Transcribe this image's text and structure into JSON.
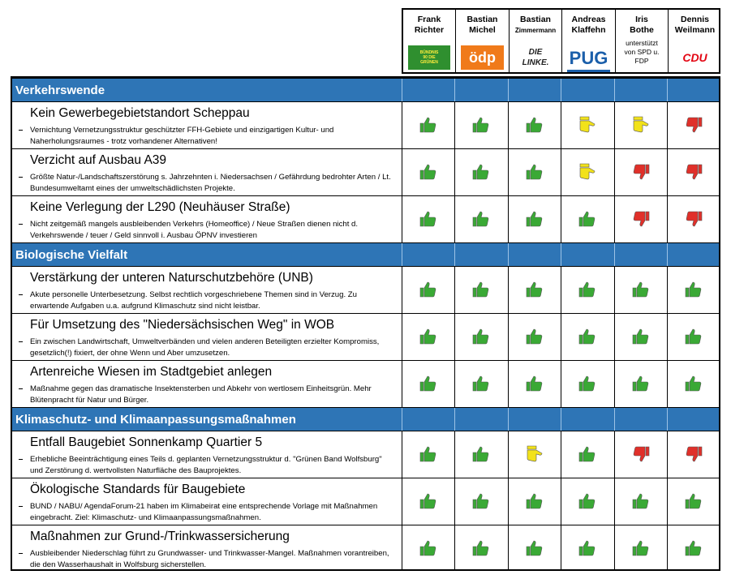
{
  "candidates": [
    {
      "first": "Frank",
      "last": "Richter",
      "logo": "BÜNDNIS 90 DIE GRÜNEN"
    },
    {
      "first": "Bastian",
      "last": "Michel",
      "logo": "ödp"
    },
    {
      "first": "Bastian",
      "last": "Zimmermann",
      "logo": "DIE LINKE."
    },
    {
      "first": "Andreas",
      "last": "Klaffehn",
      "logo": "PUG"
    },
    {
      "first": "Iris",
      "last": "Bothe",
      "logo": "unterstützt von SPD u. FDP"
    },
    {
      "first": "Dennis",
      "last": "Weilmann",
      "logo": "CDU"
    }
  ],
  "sections": [
    {
      "title": "Verkehrswende",
      "items": [
        {
          "title": "Kein Gewerbegebietstandort Scheppau",
          "description": "Vernichtung Vernetzungsstruktur geschützter FFH-Gebiete und einzigartigen Kultur- und Naherholungsraumes - trotz vorhandener Alternativen!"
        },
        {
          "title": "Verzicht auf Ausbau A39",
          "description": "Größte Natur-/Landschaftszerstörung s. Jahrzehnten i. Niedersachsen / Gefährdung bedrohter Arten / Lt. Bundesumweltamt eines der umweltschädlichsten Projekte."
        },
        {
          "title": "Keine Verlegung der L290 (Neuhäuser Straße)",
          "description": "Nicht zeitgemäß mangels ausbleibenden Verkehrs (Homeoffice) / Neue Straßen dienen nicht d. Verkehrswende / teuer / Geld sinnvoll i. Ausbau ÖPNV investieren"
        }
      ]
    },
    {
      "title": "Biologische Vielfalt",
      "items": [
        {
          "title": "Verstärkung der unteren Naturschutzbehöre (UNB)",
          "description": "Akute personelle Unterbesetzung. Selbst rechtlich vorgeschriebene Themen sind in Verzug. Zu erwartende Aufgaben u.a. aufgrund Klimaschutz sind nicht leistbar."
        },
        {
          "title": "Für Umsetzung des \"Niedersächsischen Weg\" in WOB",
          "description": "Ein zwischen Landwirtschaft, Umweltverbänden und vielen anderen Beteiligten erzielter Kompromiss, gesetzlich(!) fixiert, der ohne Wenn und Aber umzusetzen."
        },
        {
          "title": "Artenreiche Wiesen im Stadtgebiet anlegen",
          "description": "Maßnahme gegen das dramatische  Insektensterben und Abkehr von wertlosem Einheitsgrün. Mehr Blütenpracht für Natur und Bürger."
        }
      ]
    },
    {
      "title": "Klimaschutz- und Klimaanpassungsmaßnahmen",
      "items": [
        {
          "title": "Entfall Baugebiet Sonnenkamp Quartier 5",
          "description": "Erhebliche Beeinträchtigung eines Teils d.  geplanten Vernetzungsstruktur d. \"Grünen Band Wolfsburg\" und Zerstörung d. wertvollsten Naturfläche des Bauprojektes."
        },
        {
          "title": "Ökologische Standards für Baugebiete",
          "description": "BUND / NABU/ AgendaForum-21 haben im Klimabeirat eine entsprechende Vorlage mit Maßnahmen eingebracht. Ziel: Klimaschutz- und Klimaanpassungsmaßnahmen."
        },
        {
          "title": "Maßnahmen zur Grund-/Trinkwassersicherung",
          "description": "Ausbleibender Niederschlag führt zu Grundwasser- und Trinkwasser-Mangel. Maßnahmen vorantreiben, die den Wasserhaushalt in Wolfsburg sicherstellen."
        }
      ]
    }
  ]
}
